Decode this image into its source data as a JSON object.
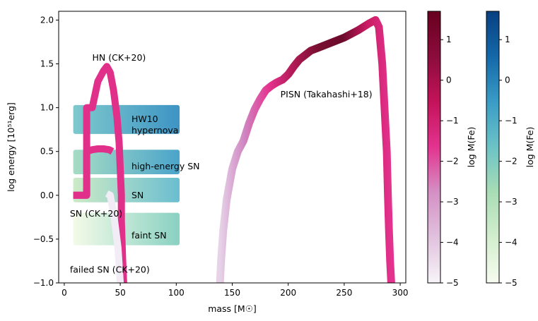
{
  "chart_data": {
    "type": "line",
    "xlabel": "mass [M☉]",
    "ylabel": "log energy [10⁵¹erg]",
    "xlim": [
      -5,
      305
    ],
    "ylim": [
      -1.0,
      2.1
    ],
    "xticks": [
      0,
      50,
      100,
      150,
      200,
      250,
      300
    ],
    "yticks": [
      -1.0,
      -0.5,
      0.0,
      0.5,
      1.0,
      1.5,
      2.0
    ],
    "xtick_labels": [
      "0",
      "50",
      "100",
      "150",
      "200",
      "250",
      "300"
    ],
    "ytick_labels": [
      "−1.0",
      "−0.5",
      "0.0",
      "0.5",
      "1.0",
      "1.5",
      "2.0"
    ],
    "grid": false,
    "bands": [
      {
        "label": "HW10\nhypernova",
        "x": [
          8,
          103
        ],
        "y": [
          0.7,
          1.03
        ],
        "color_range": [
          "#72c4c8",
          "#2d8bbf"
        ]
      },
      {
        "label": "high-energy SN",
        "x": [
          8,
          103
        ],
        "y": [
          0.24,
          0.52
        ],
        "color_range": [
          "#9fd9c0",
          "#3a9cc6"
        ]
      },
      {
        "label": "SN",
        "x": [
          8,
          103
        ],
        "y": [
          -0.08,
          0.2
        ],
        "color_range": [
          "#c8e9c1",
          "#5db8cc"
        ]
      },
      {
        "label": "faint SN",
        "x": [
          8,
          103
        ],
        "y": [
          -0.57,
          -0.2
        ],
        "color_range": [
          "#f3fae6",
          "#7ecdbc"
        ]
      }
    ],
    "series": [
      {
        "name": "HN (CK+20)",
        "color": "#e0308a",
        "x": [
          8,
          20,
          20,
          22,
          25,
          30,
          35,
          38,
          41,
          44,
          47,
          49,
          50,
          51,
          51,
          52,
          53
        ],
        "y": [
          0.0,
          0.0,
          1.0,
          1.0,
          1.0,
          1.3,
          1.42,
          1.47,
          1.4,
          1.2,
          0.9,
          0.6,
          0.3,
          0.0,
          -0.3,
          -0.7,
          -1.0
        ]
      },
      {
        "name": "SN (CK+20)",
        "color": "#e0308a",
        "x": [
          8,
          20,
          20,
          25,
          30,
          35,
          40,
          43
        ],
        "y": [
          0.0,
          0.0,
          0.5,
          0.52,
          0.53,
          0.53,
          0.52,
          0.5
        ]
      },
      {
        "name": "failed SN (CK+20)",
        "color": "#f2ecf6",
        "x": [
          38,
          41,
          44,
          46,
          48,
          49,
          50
        ],
        "y": [
          0.02,
          0.0,
          -0.2,
          -0.4,
          -0.6,
          -0.8,
          -1.0
        ]
      },
      {
        "name": "PISN (Takahashi+18)",
        "x": [
          139,
          140,
          142,
          145,
          150,
          155,
          160,
          165,
          170,
          175,
          180,
          185,
          190,
          195,
          200,
          205,
          210,
          215,
          220,
          230,
          240,
          250,
          262,
          272,
          278,
          281,
          284,
          286,
          288,
          289,
          290,
          291,
          292
        ],
        "y": [
          -1.0,
          -0.75,
          -0.4,
          -0.05,
          0.3,
          0.5,
          0.62,
          0.82,
          0.98,
          1.1,
          1.2,
          1.25,
          1.29,
          1.32,
          1.38,
          1.47,
          1.55,
          1.6,
          1.65,
          1.7,
          1.75,
          1.8,
          1.88,
          1.96,
          2.0,
          1.92,
          1.5,
          1.0,
          0.5,
          0.0,
          -0.4,
          -0.75,
          -1.0
        ],
        "color_stops": [
          "#e6d3e8",
          "#cf85c1",
          "#e5338f",
          "#b01a55",
          "#780f31",
          "#6b0a2b",
          "#c91a62",
          "#e4338f"
        ]
      }
    ],
    "annotations": [
      {
        "text": "HN (CK+20)",
        "x": 25,
        "y": 1.57
      },
      {
        "text": "SN (CK+20)",
        "x": 5,
        "y": -0.21
      },
      {
        "text": "failed SN (CK+20)",
        "x": 5,
        "y": -0.85
      },
      {
        "text": "PISN (Takahashi+18)",
        "x": 193,
        "y": 1.15
      },
      {
        "text": "HW10",
        "x": 60,
        "y": 0.87
      },
      {
        "text": "hypernova",
        "x": 60,
        "y": 0.74
      },
      {
        "text": "high-energy SN",
        "x": 60,
        "y": 0.33
      },
      {
        "text": "SN",
        "x": 60,
        "y": 0.0
      },
      {
        "text": "faint SN",
        "x": 60,
        "y": -0.46
      }
    ],
    "colorbars": [
      {
        "label": "log M(Fe)",
        "colormap": "PuRd",
        "range": [
          -5,
          1.7
        ],
        "ticks": [
          1,
          0,
          -1,
          -2,
          -3,
          -4,
          -5
        ],
        "tick_labels": [
          "1",
          "0",
          "−1",
          "−2",
          "−3",
          "−4",
          "−5"
        ],
        "color_stops": [
          "#f7f4f9",
          "#e1c2de",
          "#d490c5",
          "#e3338f",
          "#c3135a",
          "#8b0c3c",
          "#67001f"
        ]
      },
      {
        "label": "log M(Fe)",
        "colormap": "GnBu",
        "range": [
          -5,
          1.7
        ],
        "ticks": [
          1,
          0,
          -1,
          -2,
          -3,
          -4,
          -5
        ],
        "tick_labels": [
          "1",
          "0",
          "−1",
          "−2",
          "−3",
          "−4",
          "−5"
        ],
        "color_stops": [
          "#f7fcf0",
          "#d3eece",
          "#a8ddb5",
          "#6cc3c6",
          "#3a9cc6",
          "#1468a8",
          "#084081"
        ]
      }
    ]
  }
}
